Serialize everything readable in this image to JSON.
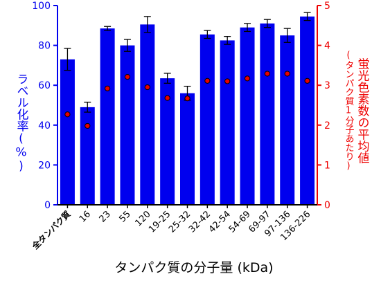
{
  "colors": {
    "bar": "#0000ee",
    "left_axis": "#0000ee",
    "right_axis": "#ee0000",
    "marker": "#e60000",
    "marker_edge": "#000000"
  },
  "chart_data": {
    "type": "bar",
    "categories": [
      "全タンパク質",
      "16",
      "23",
      "55",
      "120",
      "19-25",
      "25-32",
      "32-42",
      "42-54",
      "54-69",
      "69-97",
      "97-136",
      "136-226"
    ],
    "series": [
      {
        "axis": "left",
        "values": [
          73,
          49,
          88.5,
          80,
          90.5,
          63.5,
          56,
          85.5,
          82.5,
          89,
          91,
          85,
          94.5
        ],
        "error": [
          5.5,
          2.5,
          1,
          3,
          4,
          2.5,
          3.5,
          2,
          2,
          2,
          2,
          3.5,
          2
        ]
      },
      {
        "axis": "right",
        "type": "scatter",
        "values": [
          2.27,
          1.98,
          2.92,
          3.21,
          2.95,
          2.68,
          2.67,
          3.11,
          3.1,
          3.17,
          3.29,
          3.29,
          3.11
        ]
      }
    ],
    "xlabel": "タンパク質の分子量 (kDa)",
    "ylabel_left": "ラベル化率(%)",
    "ylabel_right": "蛍光色素数の平均値",
    "ylabel_right_sub": "(タンパク質1分子あたり)",
    "ylim_left": [
      0,
      100
    ],
    "yticks_left": [
      "0",
      "20",
      "40",
      "60",
      "80",
      "100"
    ],
    "ylim_right": [
      0,
      5
    ],
    "yticks_right": [
      "0",
      "1",
      "2",
      "3",
      "4",
      "5"
    ],
    "grid": false
  }
}
